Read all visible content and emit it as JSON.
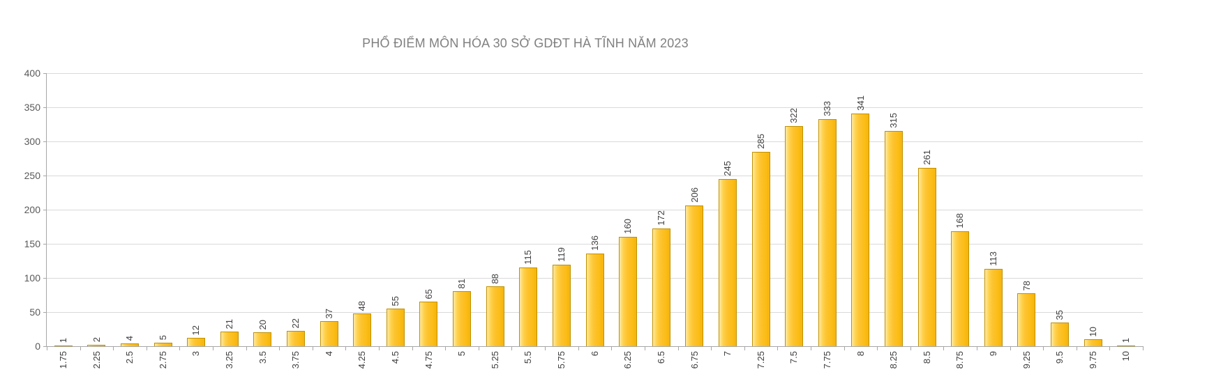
{
  "title": "PHỔ ĐIỂM MÔN HÓA 30 SỞ GDĐT HÀ TĨNH NĂM 2023",
  "chart_data": {
    "type": "bar",
    "title": "PHỔ ĐIỂM MÔN HÓA 30 SỞ GDĐT HÀ TĨNH NĂM 2023",
    "categories": [
      "1.75",
      "2.25",
      "2.5",
      "2.75",
      "3",
      "3.25",
      "3.5",
      "3.75",
      "4",
      "4.25",
      "4.5",
      "4.75",
      "5",
      "5.25",
      "5.5",
      "5.75",
      "6",
      "6.25",
      "6.5",
      "6.75",
      "7",
      "7.25",
      "7.5",
      "7.75",
      "8",
      "8.25",
      "8.5",
      "8.75",
      "9",
      "9.25",
      "9.5",
      "9.75",
      "10"
    ],
    "values": [
      1,
      2,
      4,
      5,
      12,
      21,
      20,
      22,
      37,
      48,
      55,
      65,
      81,
      88,
      115,
      119,
      136,
      160,
      172,
      206,
      245,
      285,
      322,
      333,
      341,
      315,
      261,
      168,
      113,
      78,
      35,
      10,
      1
    ],
    "xlabel": "",
    "ylabel": "",
    "ylim": [
      0,
      400
    ],
    "ytick_step": 50,
    "ytick_labels": [
      "0",
      "50",
      "100",
      "150",
      "200",
      "250",
      "300",
      "350",
      "400"
    ],
    "grid": true,
    "legend": "none",
    "data_labels": "above-bars-rotated-90",
    "tick_label_rotation": "bottom-to-top",
    "colors": {
      "bar_fill": "#FDC330",
      "bar_fill_highlight": "#FFE9A2",
      "bar_border": "#BF9000",
      "gridline": "#D9D9D9",
      "axis_line": "#A6A6A6",
      "title_text": "#808080",
      "ytick_text": "#595959",
      "label_text": "#3F3F3F",
      "background": "#FFFFFF"
    }
  }
}
